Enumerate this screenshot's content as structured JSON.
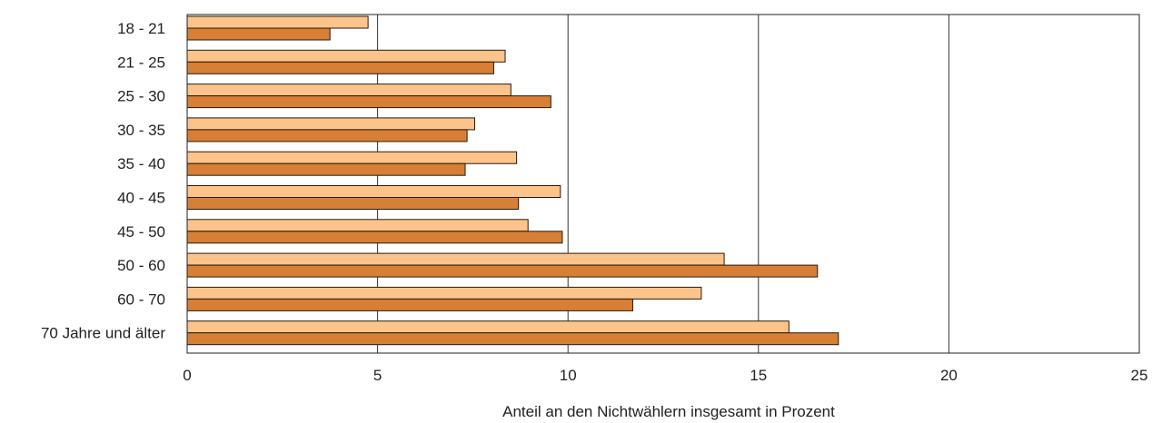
{
  "chart_data": {
    "type": "bar",
    "orientation": "horizontal",
    "categories": [
      "18 - 21",
      "21 - 25",
      "25 - 30",
      "30 - 35",
      "35 - 40",
      "40 - 45",
      "45 - 50",
      "50 - 60",
      "60 - 70",
      "70 Jahre und älter"
    ],
    "series": [
      {
        "values": [
          4.75,
          8.35,
          8.5,
          7.55,
          8.65,
          9.8,
          8.95,
          14.1,
          13.5,
          15.8
        ]
      },
      {
        "values": [
          3.75,
          8.05,
          9.55,
          7.35,
          7.3,
          8.7,
          9.85,
          16.55,
          11.7,
          17.1
        ]
      }
    ],
    "xlabel": "Anteil an den Nichtwählern insgesamt in Prozent",
    "xlim": [
      0,
      25
    ],
    "xticks": [
      "0",
      "5",
      "10",
      "15",
      "20",
      "25"
    ],
    "grid": "vertical",
    "colors": {
      "series_1": "#fcc48a",
      "series_2": "#d67f35",
      "bar_edge": "#2a1a0a",
      "grid": "#333333"
    }
  }
}
